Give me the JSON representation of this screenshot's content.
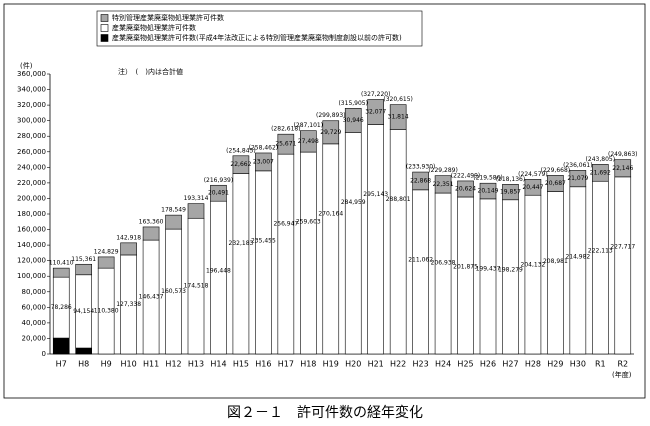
{
  "chart_data": {
    "type": "stacked_bar",
    "unit_label": "(件)",
    "note": "注）　(　)内は合計値",
    "x_unit_label": "(年度)",
    "caption": "図２－１　許可件数の経年変化",
    "categories": [
      "H7",
      "H8",
      "H9",
      "H10",
      "H11",
      "H12",
      "H13",
      "H14",
      "H15",
      "H16",
      "H17",
      "H18",
      "H19",
      "H20",
      "H21",
      "H22",
      "H23",
      "H24",
      "H25",
      "H26",
      "H27",
      "H28",
      "H29",
      "H30",
      "R1",
      "R2"
    ],
    "series": [
      {
        "name": "特別管理産業廃棄物処理業許可件数",
        "color": "#a6a6a6",
        "values": [
          11624,
          13507,
          14449,
          15580,
          16923,
          17976,
          18796,
          20491,
          22662,
          23007,
          25671,
          27498,
          29729,
          30946,
          32077,
          31814,
          22868,
          22351,
          20624,
          20149,
          19857,
          20447,
          20687,
          21079,
          21692,
          22146
        ],
        "value_labels": [
          null,
          null,
          null,
          null,
          null,
          null,
          null,
          "20,491",
          "22,662",
          "23,007",
          "25,671",
          "27,498",
          "29,729",
          "30,946",
          "32,077",
          "31,814",
          "22,868",
          "22,351",
          "20,624",
          "20,149",
          "19,857",
          "20,447",
          "20,687",
          "21,079",
          "21,692",
          "22,146"
        ]
      },
      {
        "name": "産業廃棄物処理業許可件数",
        "color": "#ffffff",
        "values": [
          78286,
          94154,
          110380,
          127338,
          146437,
          160573,
          174518,
          196448,
          232183,
          235455,
          256947,
          259603,
          270164,
          284959,
          295143,
          288801,
          211062,
          206938,
          201875,
          199437,
          198279,
          204132,
          208981,
          214982,
          222113,
          227717
        ],
        "value_labels": [
          "78,286",
          "94,154",
          "110,380",
          "127,338",
          "146,437",
          "160,573",
          "174,518",
          "196,448",
          "232,183",
          "235,455",
          "256,947",
          "259,603",
          "270,164",
          "284,959",
          "295,143",
          "288,801",
          "211,062",
          "206,938",
          "201,875",
          "199,437",
          "198,279",
          "204,132",
          "208,981",
          "214,982",
          "222,113",
          "227,717"
        ]
      },
      {
        "name": "産業廃棄物処理業許可件数(平成4年法改正による特別管理産業廃棄物制度創設以前の許可数)",
        "color": "#000000",
        "values": [
          20500,
          7700,
          null,
          null,
          null,
          null,
          null,
          null,
          null,
          null,
          null,
          null,
          null,
          null,
          null,
          null,
          null,
          null,
          null,
          null,
          null,
          null,
          null,
          null,
          null,
          null
        ]
      }
    ],
    "totals": {
      "values": [
        110410,
        115361,
        124829,
        142918,
        163360,
        178549,
        193314,
        216939,
        254845,
        258462,
        282618,
        287101,
        299893,
        315905,
        327220,
        320615,
        233930,
        229289,
        222499,
        219586,
        218136,
        224579,
        229668,
        236061,
        243805,
        249863
      ],
      "value_labels": [
        "110,410",
        "115,361",
        "124,829",
        "142,918",
        "163,360",
        "178,549",
        "193,314",
        "(216,939)",
        "(254,845)",
        "(258,462)",
        "(282,618)",
        "(287,101)",
        "(299,893)",
        "(315,905)",
        "(327,220)",
        "(320,615)",
        "(233,930)",
        "(229,289)",
        "(222,499)",
        "(219,586)",
        "(218,136)",
        "(224,579)",
        "(229,668)",
        "(236,061)",
        "(243,805)",
        "(249,863)"
      ]
    },
    "ylim": [
      0,
      360000
    ],
    "yticks": [
      0,
      {
        "value": 20000,
        "label": "20,000"
      },
      {
        "value": 40000,
        "label": "40,000"
      },
      {
        "value": 60000,
        "label": "60,000"
      },
      {
        "value": 80000,
        "label": "80,000"
      },
      {
        "value": 100000,
        "label": "100,000"
      },
      {
        "value": 120000,
        "label": "120,000"
      },
      {
        "value": 140000,
        "label": "140,000"
      },
      {
        "value": 160000,
        "label": "160,000"
      },
      {
        "value": 180000,
        "label": "180,000"
      },
      {
        "value": 200000,
        "label": "200,000"
      },
      {
        "value": 220000,
        "label": "220,000"
      },
      {
        "value": 240000,
        "label": "240,000"
      },
      {
        "value": 260000,
        "label": "260,000"
      },
      {
        "value": 280000,
        "label": "280,000"
      },
      {
        "value": 300000,
        "label": "300,000"
      },
      {
        "value": 320000,
        "label": "320,000"
      },
      {
        "value": 340000,
        "label": "340,000"
      },
      {
        "value": 360000,
        "label": "360,000"
      }
    ],
    "grid": false
  }
}
